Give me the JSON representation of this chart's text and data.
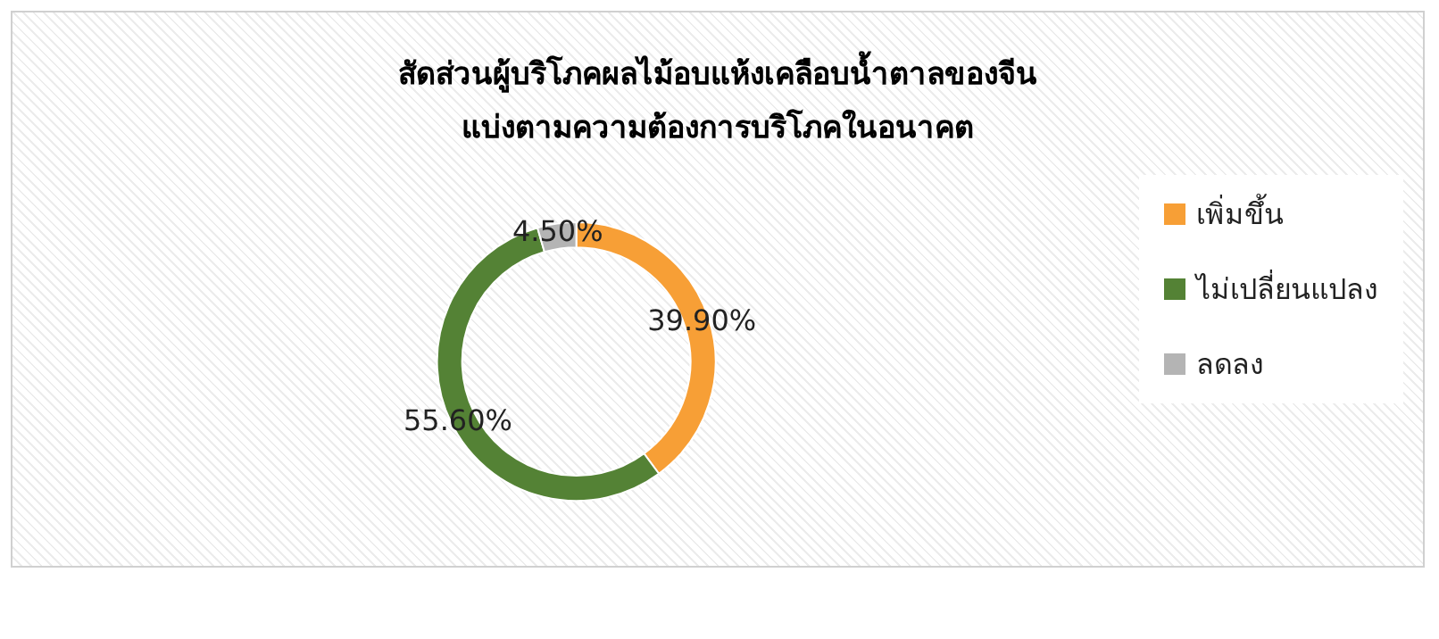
{
  "chart_data": {
    "type": "donut",
    "title": "สัดส่วนผู้บริโภคผลไม้อบแห้งเคลือบน้ำตาลของจีน\nแบ่งตามความต้องการบริโภคในอนาคต",
    "categories": [
      "เพิ่มขึ้น",
      "ไม่เปลี่ยนแปลง",
      "ลดลง"
    ],
    "values": [
      39.9,
      55.6,
      4.5
    ],
    "colors": [
      "#f79f36",
      "#548235",
      "#b4b4b4"
    ],
    "value_labels": [
      "39.90%",
      "55.60%",
      "4.50%"
    ],
    "legend": "right"
  }
}
